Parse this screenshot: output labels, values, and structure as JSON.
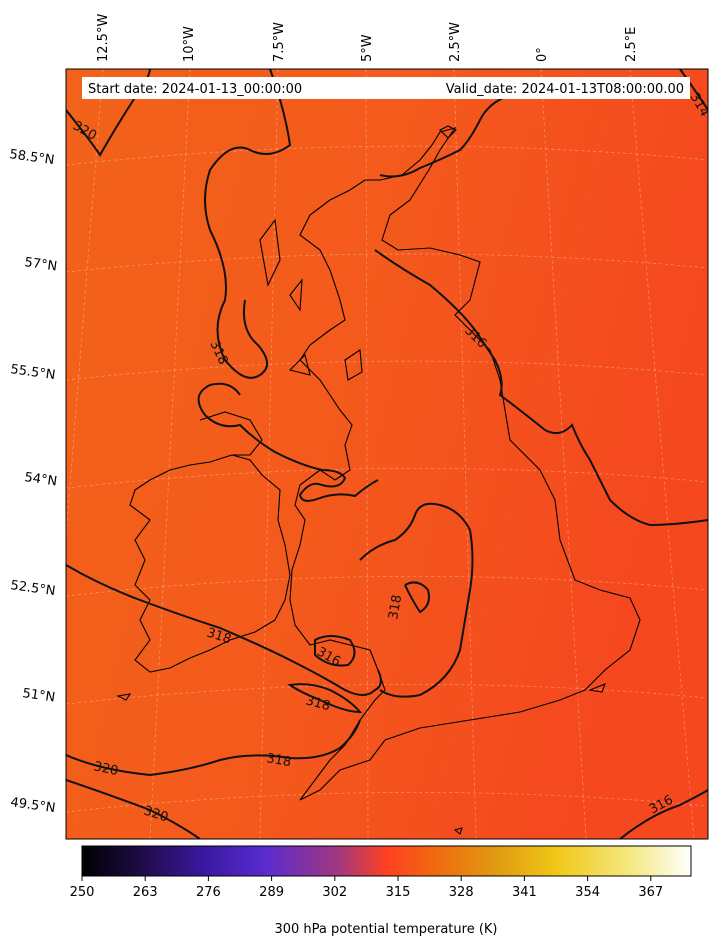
{
  "info_box": {
    "start_label": "Start date: 2024-01-13_00:00:00",
    "valid_label": "Valid_date: 2024-01-13T08:00:00.00"
  },
  "lon_labels": [
    "12.5°W",
    "10°W",
    "7.5°W",
    "5°W",
    "2.5°W",
    "0°",
    "2.5°E"
  ],
  "lat_labels": [
    "58.5°N",
    "57°N",
    "55.5°N",
    "54°N",
    "52.5°N",
    "51°N",
    "49.5°N"
  ],
  "contour_labels": [
    "320",
    "314",
    "316",
    "318",
    "318",
    "318",
    "316",
    "318",
    "320",
    "318",
    "320",
    "316"
  ],
  "colorbar": {
    "ticks": [
      "250",
      "263",
      "276",
      "289",
      "302",
      "315",
      "328",
      "341",
      "354",
      "367"
    ],
    "label": "300 hPa potential temperature (K)",
    "colors": [
      "#000000",
      "#1f0c48",
      "#4a1ba8",
      "#5a2bd0",
      "#a03880",
      "#ff4020",
      "#f06a10",
      "#e09a10",
      "#f0c818",
      "#f4e880",
      "#ffffff"
    ]
  }
}
